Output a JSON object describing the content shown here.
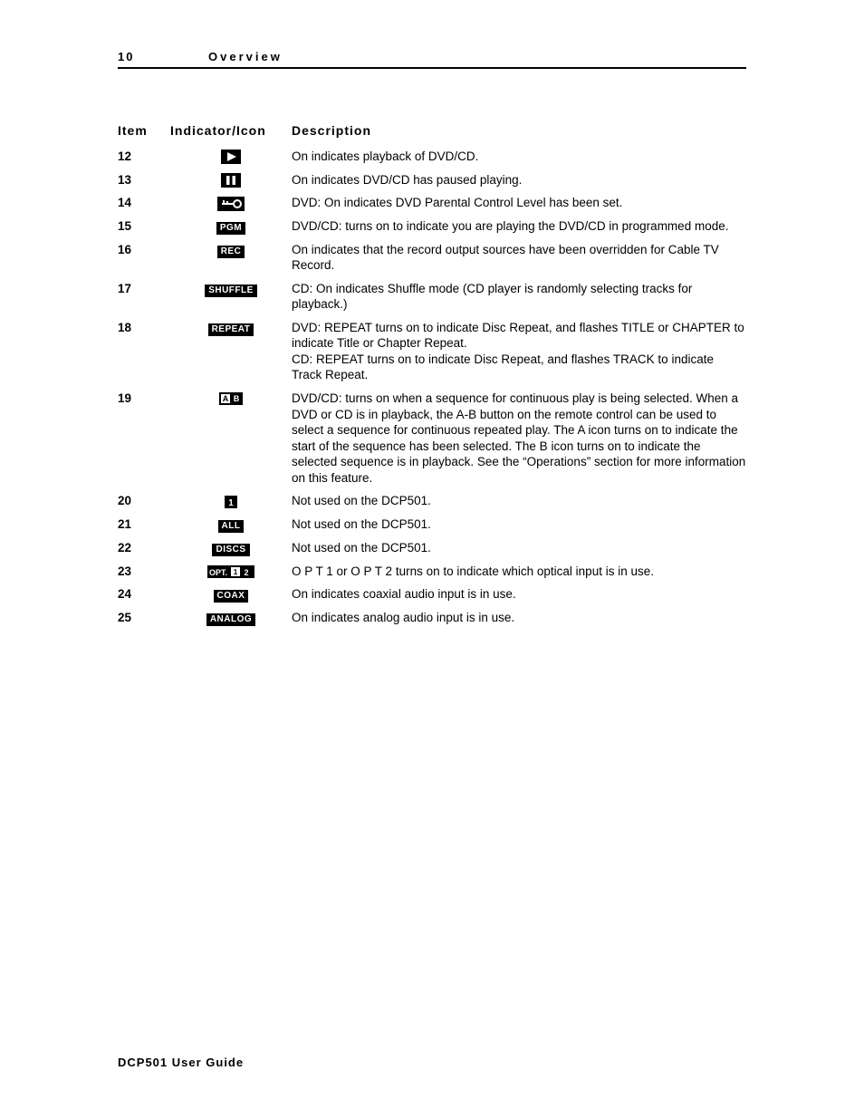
{
  "header": {
    "page_number": "10",
    "section": "Overview"
  },
  "columns": {
    "item": "Item",
    "indicator": "Indicator/Icon",
    "description": "Description"
  },
  "rows": [
    {
      "item": "12",
      "icon_type": "play",
      "icon_text": "",
      "description": "On indicates playback of DVD/CD."
    },
    {
      "item": "13",
      "icon_type": "pause",
      "icon_text": "",
      "description": "On indicates DVD/CD has paused playing."
    },
    {
      "item": "14",
      "icon_type": "key",
      "icon_text": "",
      "description": "DVD: On indicates DVD Parental Control Level has been set."
    },
    {
      "item": "15",
      "icon_type": "label",
      "icon_text": "PGM",
      "description": "DVD/CD: turns on to indicate you are playing the DVD/CD in programmed mode."
    },
    {
      "item": "16",
      "icon_type": "label",
      "icon_text": "REC",
      "description": "On indicates that the record output sources have been overridden for Cable TV Record."
    },
    {
      "item": "17",
      "icon_type": "label",
      "icon_text": "SHUFFLE",
      "description": "CD: On indicates Shuffle mode (CD player is randomly selecting tracks for playback.)"
    },
    {
      "item": "18",
      "icon_type": "label",
      "icon_text": "REPEAT",
      "description": "DVD: REPEAT turns on to indicate Disc Repeat, and flashes TITLE or CHAPTER to indicate Title or Chapter Repeat.\nCD: REPEAT turns on to indicate Disc Repeat, and flashes TRACK to indicate Track Repeat."
    },
    {
      "item": "19",
      "icon_type": "ab",
      "icon_text": "A B",
      "description": "DVD/CD: turns on when a sequence for continuous play is being selected. When a DVD or CD is in playback, the A-B button on the remote control can be used to select a sequence for continuous repeated play. The A icon turns on to indicate the start of the sequence has been selected. The B icon turns on to indicate the selected sequence is in playback. See the “Operations” section for more information on this feature."
    },
    {
      "item": "20",
      "icon_type": "one",
      "icon_text": "1",
      "description": "Not used on the DCP501."
    },
    {
      "item": "21",
      "icon_type": "label",
      "icon_text": "ALL",
      "description": "Not used on the DCP501."
    },
    {
      "item": "22",
      "icon_type": "label",
      "icon_text": "DISCS",
      "description": "Not used on the DCP501."
    },
    {
      "item": "23",
      "icon_type": "opt",
      "icon_text": "OPT. 1 2",
      "description": "O P T  1 or O P T  2 turns on to indicate which optical input is in use."
    },
    {
      "item": "24",
      "icon_type": "label",
      "icon_text": "COAX",
      "description": "On indicates coaxial audio input is in use."
    },
    {
      "item": "25",
      "icon_type": "label",
      "icon_text": "ANALOG",
      "description": "On indicates analog audio input is in use."
    }
  ],
  "footer": "DCP501 User Guide",
  "colors": {
    "text": "#000000",
    "background": "#ffffff",
    "icon_bg": "#000000",
    "icon_fg": "#ffffff",
    "rule": "#000000"
  },
  "typography": {
    "body_fontsize": 13.5,
    "header_fontsize": 14,
    "font_family": "Arial"
  }
}
